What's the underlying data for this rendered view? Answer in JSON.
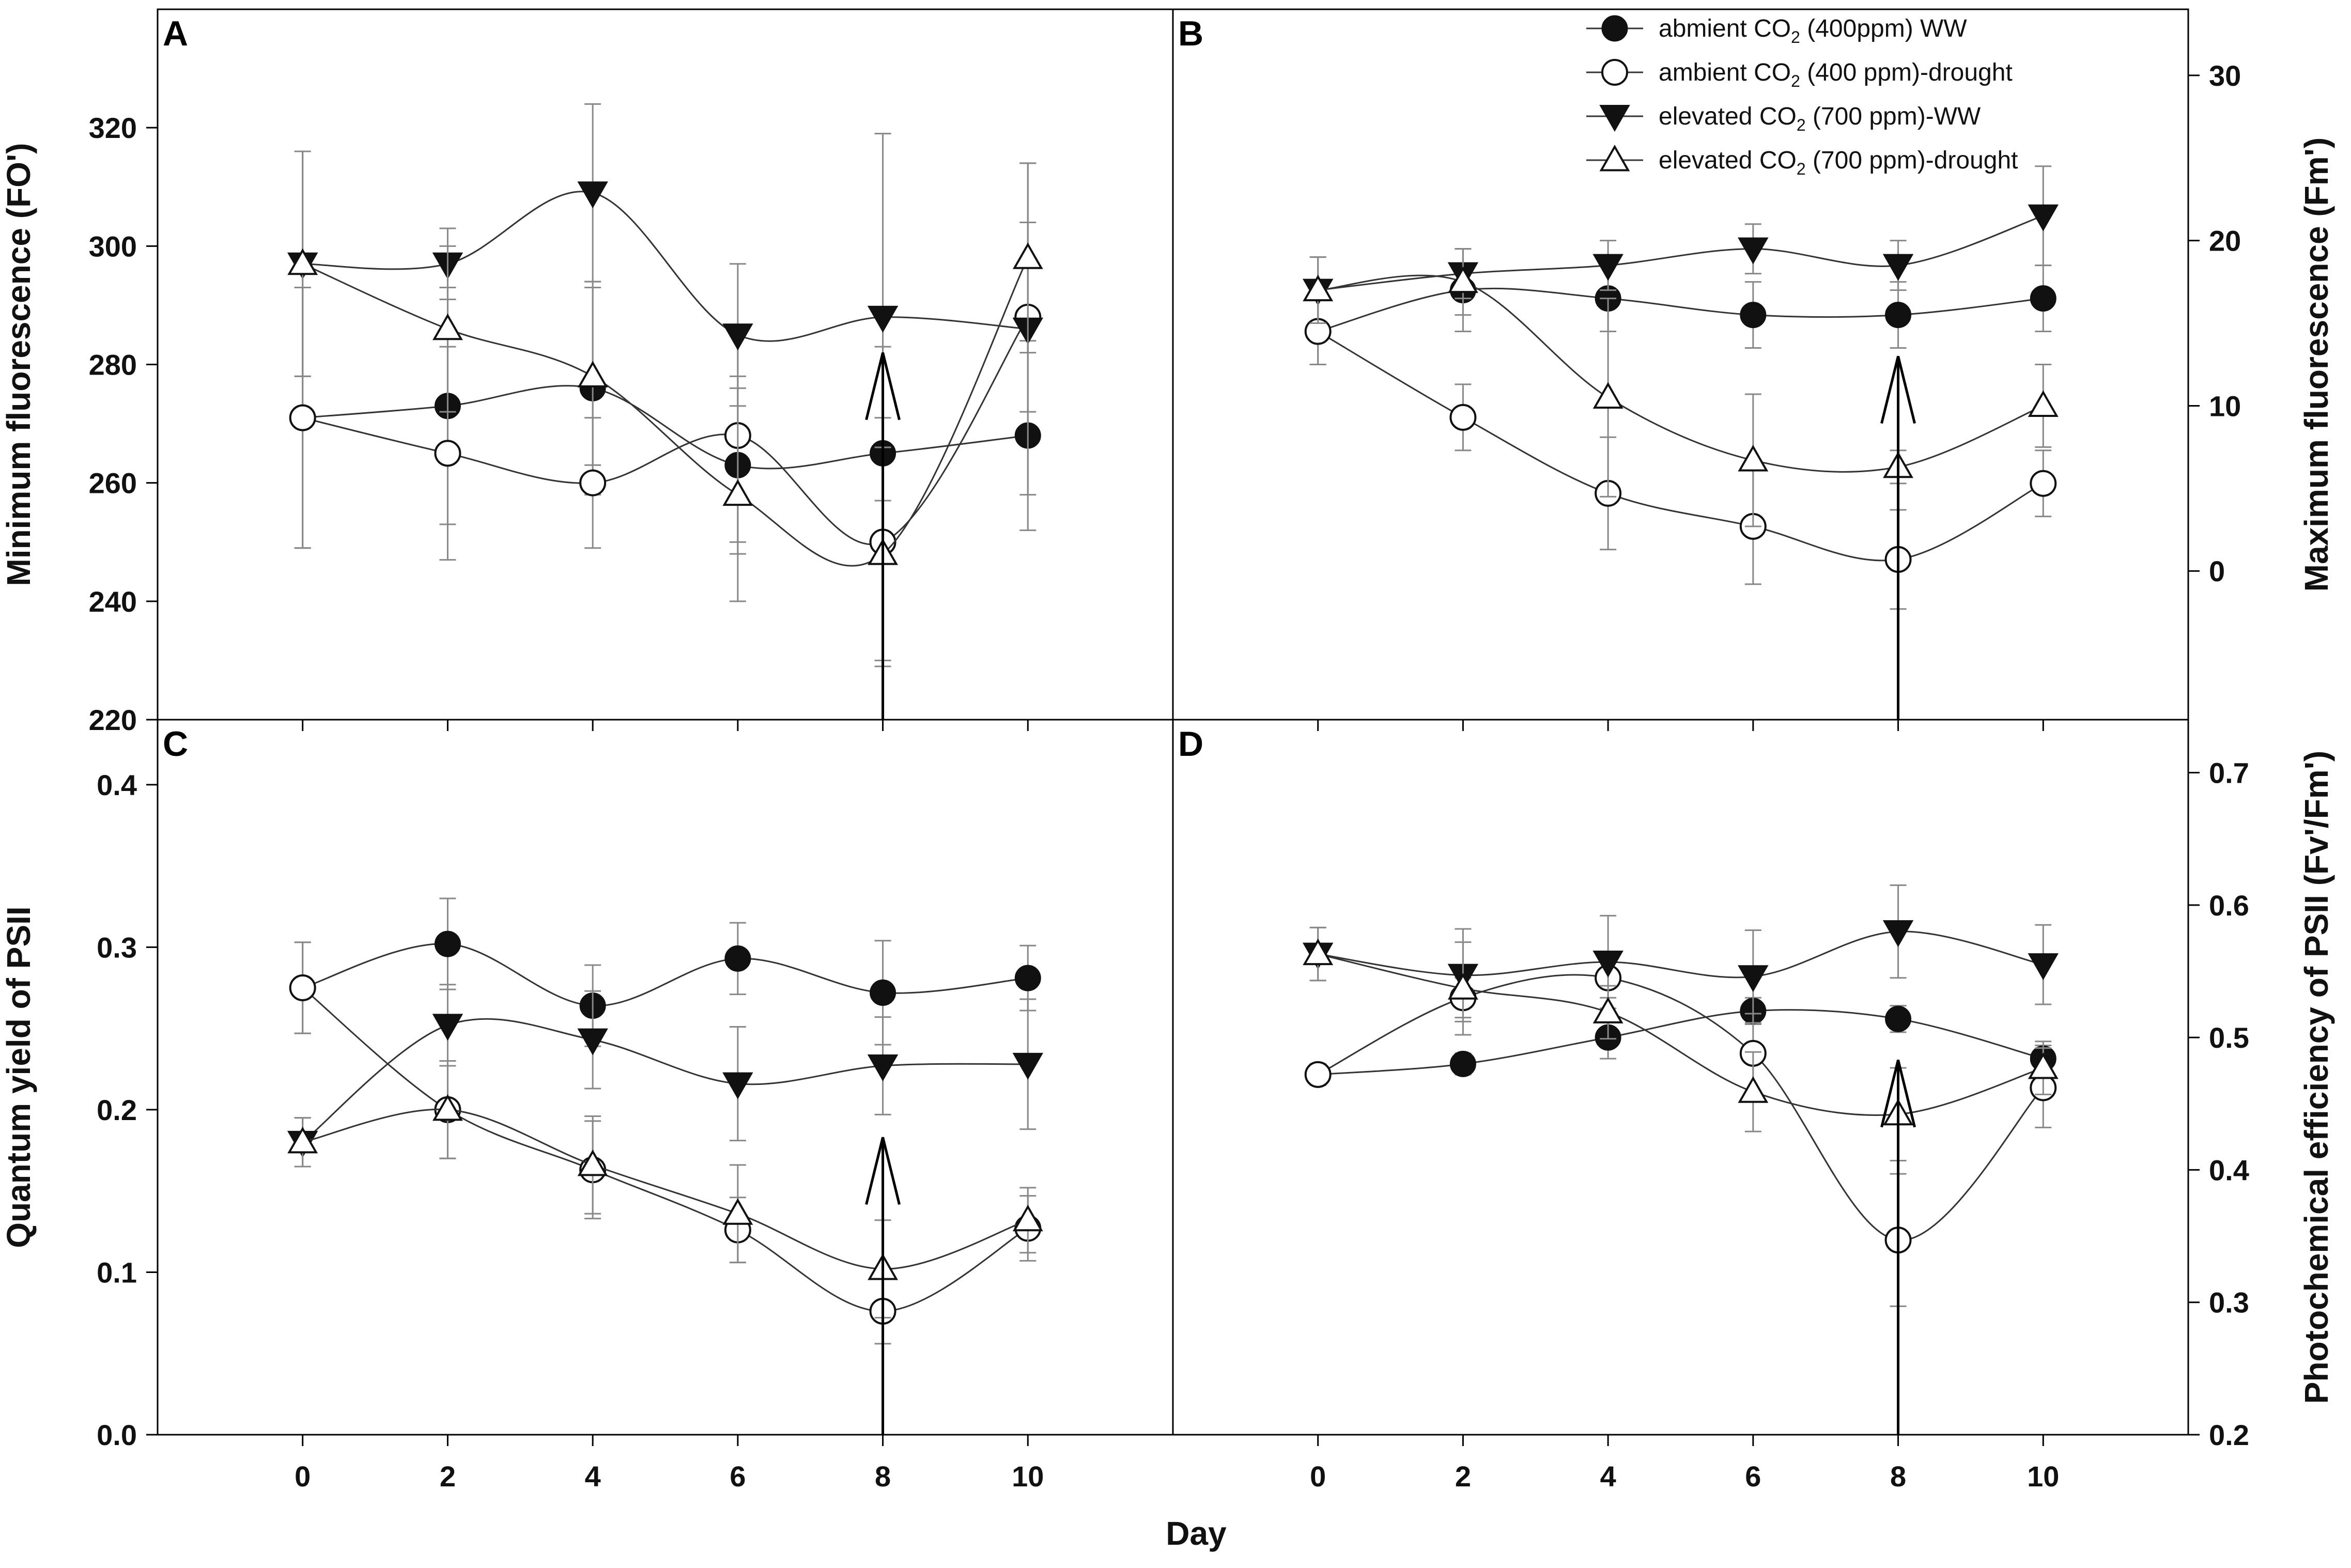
{
  "figure": {
    "x_title": "Day",
    "legend": [
      {
        "series": "amb_ww",
        "pre": "abmient CO",
        "sub": "2",
        "post": " (400ppm) WW",
        "marker": "filled-circle"
      },
      {
        "series": "amb_dr",
        "pre": "ambient CO",
        "sub": "2",
        "post": " (400 ppm)-drought",
        "marker": "open-circle"
      },
      {
        "series": "ele_ww",
        "pre": "elevated CO",
        "sub": "2",
        "post": " (700 ppm)-WW",
        "marker": "filled-triangle-down"
      },
      {
        "series": "ele_dr",
        "pre": "elevated CO",
        "sub": "2",
        "post": " (700 ppm)-drought",
        "marker": "open-triangle-up"
      }
    ],
    "colors": {
      "line": "#333333",
      "marker": "#111111",
      "error_bar": "#888888",
      "axis": "#000000"
    }
  },
  "chart_data": [
    {
      "panel": "A",
      "type": "line",
      "ylabel": "Minimum fluorescence (FO')",
      "yaxis_side": "left",
      "ylim": [
        220,
        340
      ],
      "yticks": [
        220,
        240,
        260,
        280,
        300,
        320
      ],
      "xlim": [
        -2,
        12
      ],
      "xticks": [
        0,
        2,
        4,
        6,
        8,
        10
      ],
      "show_xtick_labels": false,
      "x": [
        0,
        2,
        4,
        6,
        8,
        10
      ],
      "arrow_at": 8,
      "arrow_tip_value": 282,
      "series": [
        {
          "name": "amb_ww",
          "values": [
            271,
            273,
            276,
            263,
            265,
            268
          ],
          "err": [
            22,
            20,
            18,
            15,
            18,
            16
          ]
        },
        {
          "name": "amb_dr",
          "values": [
            271,
            265,
            260,
            268,
            250,
            288
          ],
          "err": [
            22,
            18,
            11,
            18,
            21,
            16
          ]
        },
        {
          "name": "ele_ww",
          "values": [
            297,
            297,
            309,
            285,
            288,
            286
          ],
          "err": [
            19,
            6,
            15,
            12,
            31,
            28
          ]
        },
        {
          "name": "ele_dr",
          "values": [
            297,
            286,
            278,
            258,
            248,
            298
          ],
          "err": [
            19,
            14,
            15,
            18,
            18,
            16
          ]
        }
      ]
    },
    {
      "panel": "B",
      "type": "line",
      "ylabel": "Maximum fluorescence (Fm')",
      "yaxis_side": "right",
      "ylim": [
        -9,
        34
      ],
      "yticks": [
        0,
        10,
        20,
        30
      ],
      "xlim": [
        -2,
        12
      ],
      "xticks": [
        0,
        2,
        4,
        6,
        8,
        10
      ],
      "show_xtick_labels": false,
      "x": [
        0,
        2,
        4,
        6,
        8,
        10
      ],
      "arrow_at": 8,
      "arrow_tip_value": 13,
      "series": [
        {
          "name": "amb_ww",
          "values": [
            14.5,
            17,
            16.5,
            15.5,
            15.5,
            16.5
          ],
          "err": [
            2,
            2.5,
            2,
            2,
            2,
            2
          ]
        },
        {
          "name": "amb_dr",
          "values": [
            14.5,
            9.3,
            4.7,
            2.7,
            0.7,
            5.3
          ],
          "err": [
            2,
            2,
            3.4,
            3.5,
            3,
            2
          ]
        },
        {
          "name": "ele_ww",
          "values": [
            17,
            18,
            18.5,
            19.5,
            18.5,
            21.5
          ],
          "err": [
            2,
            1.5,
            1.5,
            1.5,
            1.5,
            3
          ]
        },
        {
          "name": "ele_dr",
          "values": [
            17,
            17.5,
            10.5,
            6.7,
            6.3,
            10
          ],
          "err": [
            2,
            2,
            6,
            4,
            1,
            2.5
          ]
        }
      ]
    },
    {
      "panel": "C",
      "type": "line",
      "ylabel": "Quantum yield of PSII",
      "yaxis_side": "left",
      "ylim": [
        0.0,
        0.44
      ],
      "yticks": [
        0.0,
        0.1,
        0.2,
        0.3,
        0.4
      ],
      "xlim": [
        -2,
        12
      ],
      "xticks": [
        0,
        2,
        4,
        6,
        8,
        10
      ],
      "show_xtick_labels": true,
      "x": [
        0,
        2,
        4,
        6,
        8,
        10
      ],
      "arrow_at": 8,
      "arrow_tip_value": 0.183,
      "series": [
        {
          "name": "amb_ww",
          "values": [
            0.275,
            0.302,
            0.264,
            0.293,
            0.272,
            0.281
          ],
          "err": [
            0.028,
            0.028,
            0.025,
            0.022,
            0.032,
            0.02
          ]
        },
        {
          "name": "amb_dr",
          "values": [
            0.275,
            0.2,
            0.163,
            0.126,
            0.076,
            0.127
          ],
          "err": [
            0.028,
            0.03,
            0.03,
            0.02,
            0.02,
            0.02
          ]
        },
        {
          "name": "ele_ww",
          "values": [
            0.18,
            0.252,
            0.243,
            0.216,
            0.227,
            0.228
          ],
          "err": [
            0.015,
            0.025,
            0.03,
            0.035,
            0.03,
            0.04
          ]
        },
        {
          "name": "ele_dr",
          "values": [
            0.18,
            0.2,
            0.166,
            0.136,
            0.102,
            0.132
          ],
          "err": [
            0.015,
            0.03,
            0.03,
            0.03,
            0.03,
            0.02
          ]
        }
      ]
    },
    {
      "panel": "D",
      "type": "line",
      "ylabel": "Photochemical efficiency of PSII (Fv'/Fm')",
      "yaxis_side": "right",
      "ylim": [
        0.2,
        0.74
      ],
      "yticks": [
        0.2,
        0.3,
        0.4,
        0.5,
        0.6,
        0.7
      ],
      "xlim": [
        -2,
        12
      ],
      "xticks": [
        0,
        2,
        4,
        6,
        8,
        10
      ],
      "show_xtick_labels": true,
      "x": [
        0,
        2,
        4,
        6,
        8,
        10
      ],
      "arrow_at": 8,
      "arrow_tip_value": 0.483,
      "series": [
        {
          "name": "amb_ww",
          "values": [
            0.472,
            0.48,
            0.5,
            0.52,
            0.514,
            0.484
          ],
          "err": [
            0.008,
            0.008,
            0.016,
            0.01,
            0.01,
            0.01
          ]
        },
        {
          "name": "amb_dr",
          "values": [
            0.472,
            0.53,
            0.545,
            0.488,
            0.347,
            0.462
          ],
          "err": [
            0.008,
            0.015,
            0.015,
            0.03,
            0.05,
            0.03
          ]
        },
        {
          "name": "ele_ww",
          "values": [
            0.563,
            0.547,
            0.557,
            0.546,
            0.58,
            0.555
          ],
          "err": [
            0.02,
            0.035,
            0.035,
            0.035,
            0.035,
            0.03
          ]
        },
        {
          "name": "ele_dr",
          "values": [
            0.563,
            0.537,
            0.519,
            0.459,
            0.442,
            0.477
          ],
          "err": [
            0.02,
            0.035,
            0.02,
            0.03,
            0.035,
            0.02
          ]
        }
      ]
    }
  ]
}
